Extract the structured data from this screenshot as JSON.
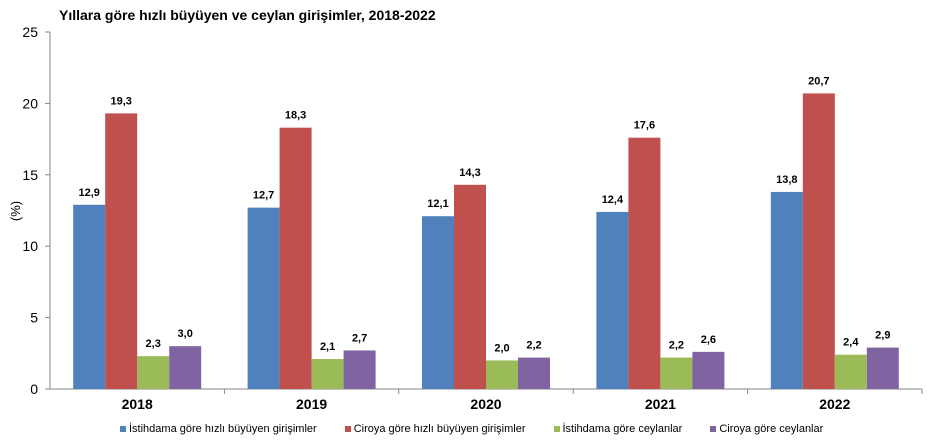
{
  "chart_data": {
    "type": "bar",
    "title": "Yıllara göre hızlı büyüyen ve ceylan girişimler, 2018-2022",
    "xlabel": "",
    "ylabel": "(%)",
    "ylim": [
      0,
      25
    ],
    "yticks": [
      "0",
      "5",
      "10",
      "15",
      "20",
      "25"
    ],
    "categories": [
      "2018",
      "2019",
      "2020",
      "2021",
      "2022"
    ],
    "legend_position": "bottom",
    "grid": false,
    "series": [
      {
        "name": "İstihdama göre hızlı büyüyen girişimler",
        "color": "#4F81BD",
        "values": [
          12.9,
          12.7,
          12.1,
          12.4,
          13.8
        ],
        "labels": [
          "12,9",
          "12,7",
          "12,1",
          "12,4",
          "13,8"
        ]
      },
      {
        "name": "Ciroya göre hızlı büyüyen girişimler",
        "color": "#C0504D",
        "values": [
          19.3,
          18.3,
          14.3,
          17.6,
          20.7
        ],
        "labels": [
          "19,3",
          "18,3",
          "14,3",
          "17,6",
          "20,7"
        ]
      },
      {
        "name": "İstihdama göre ceylanlar",
        "color": "#9BBB59",
        "values": [
          2.3,
          2.1,
          2.0,
          2.2,
          2.4
        ],
        "labels": [
          "2,3",
          "2,1",
          "2,0",
          "2,2",
          "2,4"
        ]
      },
      {
        "name": "Ciroya göre ceylanlar",
        "color": "#8064A2",
        "values": [
          3.0,
          2.7,
          2.2,
          2.6,
          2.9
        ],
        "labels": [
          "3,0",
          "2,7",
          "2,2",
          "2,6",
          "2,9"
        ]
      }
    ]
  }
}
